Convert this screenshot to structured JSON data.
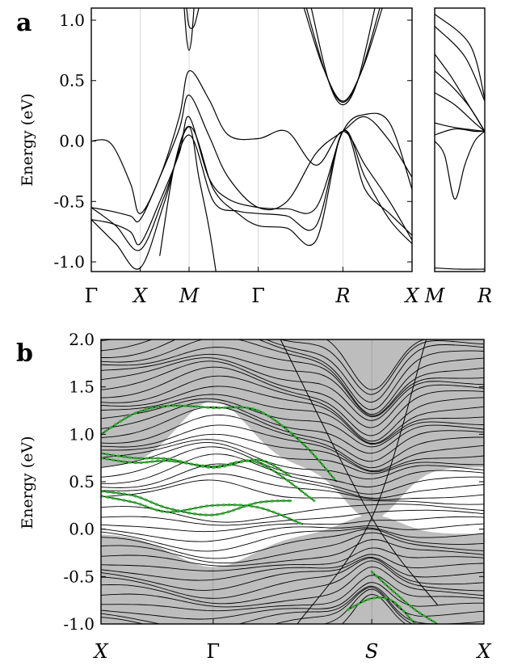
{
  "chart_data": [
    {
      "panel": "a",
      "type": "line",
      "ylabel": "Energy (eV)",
      "ylim": [
        -1.08,
        1.1
      ],
      "yticks": [
        "1.0",
        "0.5",
        "0.0",
        "-0.5",
        "-1.0"
      ],
      "ytick_values": [
        1.0,
        0.5,
        0.0,
        -0.5,
        -1.0
      ],
      "kpath": [
        "Γ",
        "X",
        "M",
        "Γ",
        "R",
        "X"
      ],
      "kpath_positions": [
        0,
        1,
        2,
        3.414,
        5.146,
        6.56
      ],
      "xlim": [
        0,
        6.56
      ],
      "line_color": "#000000",
      "series": [
        {
          "x": [
            0,
            0.4,
            0.8,
            1.0,
            1.4,
            1.8,
            2.0,
            2.4,
            2.8,
            3.414,
            4.0,
            4.6,
            5.146,
            5.6,
            6.1,
            6.56
          ],
          "values": [
            0.0,
            -0.02,
            -0.35,
            -0.6,
            -0.3,
            0.2,
            0.58,
            0.35,
            0.05,
            0.02,
            0.08,
            -0.2,
            0.08,
            -0.2,
            -0.5,
            -0.82
          ]
        },
        {
          "x": [
            0,
            0.4,
            0.8,
            1.0,
            1.4,
            1.8,
            2.0,
            2.4,
            2.8,
            3.414,
            4.0,
            4.6,
            5.146,
            5.6,
            6.1,
            6.56
          ],
          "values": [
            -0.55,
            -0.58,
            -0.62,
            -0.65,
            -0.3,
            0.1,
            0.38,
            0.05,
            -0.3,
            -0.55,
            -0.5,
            -0.1,
            0.08,
            0.2,
            0.0,
            -0.3
          ]
        },
        {
          "x": [
            0,
            0.4,
            0.8,
            1.0,
            1.4,
            1.8,
            2.0,
            2.4,
            2.8,
            3.414,
            4.0,
            4.6,
            5.146,
            5.6,
            6.1,
            6.56
          ],
          "values": [
            -0.65,
            -0.68,
            -0.75,
            -0.85,
            -0.5,
            -0.1,
            0.2,
            -0.3,
            -0.48,
            -0.55,
            -0.56,
            -0.55,
            0.08,
            0.22,
            0.15,
            -0.4
          ]
        },
        {
          "x": [
            0,
            0.5,
            1.0,
            1.5,
            2.0,
            2.5,
            3.0,
            3.414,
            4.0,
            4.6,
            5.146,
            5.6,
            6.1,
            6.56
          ],
          "values": [
            -0.55,
            -0.7,
            -0.9,
            -0.45,
            0.05,
            -0.5,
            -0.58,
            -0.6,
            -0.62,
            -0.7,
            0.08,
            -0.3,
            -0.65,
            -0.85
          ]
        },
        {
          "x": [
            0,
            0.5,
            1.0,
            1.5,
            2.0,
            2.5,
            3.0,
            3.414,
            4.0,
            4.6,
            5.146,
            5.6,
            6.1,
            6.56
          ],
          "values": [
            -0.65,
            -0.85,
            -1.05,
            -0.5,
            0.12,
            -0.4,
            -0.6,
            -0.7,
            -0.72,
            -0.82,
            0.08,
            -0.4,
            -0.6,
            -0.78
          ]
        },
        {
          "x": [
            1.4,
            1.7,
            2.0,
            2.2,
            2.4,
            2.55
          ],
          "values": [
            -0.95,
            -0.2,
            0.12,
            -0.3,
            -0.7,
            -1.08
          ]
        },
        {
          "x": [
            1.9,
            1.95,
            2.0,
            2.05,
            2.1
          ],
          "values": [
            1.1,
            0.85,
            0.75,
            0.85,
            1.1
          ]
        },
        {
          "x": [
            1.95,
            2.0,
            2.1,
            2.2
          ],
          "values": [
            1.1,
            0.95,
            0.95,
            1.1
          ]
        },
        {
          "x": [
            4.4,
            4.8,
            5.146,
            5.5,
            5.9
          ],
          "values": [
            1.1,
            0.55,
            0.32,
            0.55,
            1.1
          ]
        },
        {
          "x": [
            4.5,
            4.85,
            5.146,
            5.45,
            5.8
          ],
          "values": [
            1.1,
            0.5,
            0.3,
            0.5,
            1.1
          ]
        },
        {
          "x": [
            4.35,
            4.75,
            5.146,
            5.55,
            5.95
          ],
          "values": [
            1.1,
            0.6,
            0.33,
            0.6,
            1.1
          ]
        }
      ]
    },
    {
      "panel": "a-inset",
      "type": "line",
      "ylim": [
        -1.08,
        1.1
      ],
      "kpath": [
        "M",
        "R"
      ],
      "kpath_positions": [
        0,
        1
      ],
      "xlim": [
        0,
        1
      ],
      "line_color": "#000000",
      "series": [
        {
          "x": [
            0,
            0.3,
            0.6,
            1.0
          ],
          "values": [
            0.72,
            0.55,
            0.35,
            0.08
          ]
        },
        {
          "x": [
            0,
            0.35,
            0.7,
            1.0
          ],
          "values": [
            0.58,
            0.45,
            0.28,
            0.08
          ]
        },
        {
          "x": [
            0,
            0.4,
            0.8,
            1.0
          ],
          "values": [
            0.4,
            0.3,
            0.15,
            0.08
          ]
        },
        {
          "x": [
            0,
            0.3,
            0.6,
            1.0
          ],
          "values": [
            0.15,
            0.12,
            0.1,
            0.08
          ]
        },
        {
          "x": [
            0,
            0.4,
            0.8,
            1.0
          ],
          "values": [
            0.05,
            0.1,
            0.08,
            0.08
          ]
        },
        {
          "x": [
            0,
            0.2,
            0.4,
            0.6,
            0.8,
            1.0
          ],
          "values": [
            0.0,
            -0.12,
            -0.48,
            -0.2,
            0.0,
            0.08
          ]
        },
        {
          "x": [
            0,
            0.5,
            1.0
          ],
          "values": [
            -1.05,
            -1.06,
            -1.06
          ]
        },
        {
          "x": [
            0,
            0.6,
            1.0
          ],
          "values": [
            0.95,
            0.7,
            0.33
          ]
        },
        {
          "x": [
            0,
            0.7,
            1.0
          ],
          "values": [
            1.05,
            0.8,
            0.35
          ]
        }
      ]
    },
    {
      "panel": "b",
      "type": "line",
      "ylabel": "Energy (eV)",
      "ylim": [
        -1.0,
        2.0
      ],
      "yticks": [
        "2.0",
        "1.5",
        "1.0",
        "0.5",
        "0.0",
        "-0.5",
        "-1.0"
      ],
      "ytick_values": [
        2.0,
        1.5,
        1.0,
        0.5,
        0.0,
        -0.5,
        -1.0
      ],
      "kpath": [
        "X",
        "Γ",
        "S",
        "X"
      ],
      "kpath_positions": [
        0,
        1,
        2.414,
        3.414
      ],
      "xlim": [
        0,
        3.414
      ],
      "shaded_color": "#bdbdbd",
      "line_color": "#000000",
      "highlight_color": "#2db32d",
      "surface_states": [
        {
          "x": [
            0,
            0.3,
            0.6,
            1.0,
            1.4,
            1.7
          ],
          "values": [
            0.8,
            0.75,
            0.74,
            0.65,
            0.73,
            0.55
          ]
        },
        {
          "x": [
            0,
            0.3,
            0.6,
            1.0,
            1.4,
            1.7
          ],
          "values": [
            0.4,
            0.35,
            0.22,
            0.15,
            0.28,
            0.3
          ]
        },
        {
          "x": [
            0,
            0.3,
            0.6,
            1.0,
            1.4,
            1.8
          ],
          "values": [
            0.35,
            0.28,
            0.18,
            0.25,
            0.23,
            0.05
          ]
        },
        {
          "x": [
            0,
            0.3,
            0.6,
            1.0,
            1.4,
            1.9
          ],
          "values": [
            0.75,
            0.7,
            0.72,
            0.66,
            0.7,
            0.3
          ]
        },
        {
          "x": [
            0,
            0.3,
            0.6,
            1.0,
            1.4,
            1.8,
            2.1
          ],
          "values": [
            1.0,
            1.22,
            1.3,
            1.28,
            1.25,
            0.9,
            0.5
          ]
        },
        {
          "x": [
            2.414,
            2.6,
            2.8,
            3.0
          ],
          "values": [
            -0.45,
            -0.65,
            -0.85,
            -1.0
          ]
        },
        {
          "x": [
            2.2,
            2.414,
            2.6,
            2.8
          ],
          "values": [
            -0.85,
            -0.73,
            -0.76,
            -1.0
          ]
        }
      ]
    }
  ],
  "labels": {
    "panel_a": "a",
    "panel_b": "b",
    "ylabel_a": "Energy (eV)",
    "ylabel_b": "Energy (eV)"
  }
}
